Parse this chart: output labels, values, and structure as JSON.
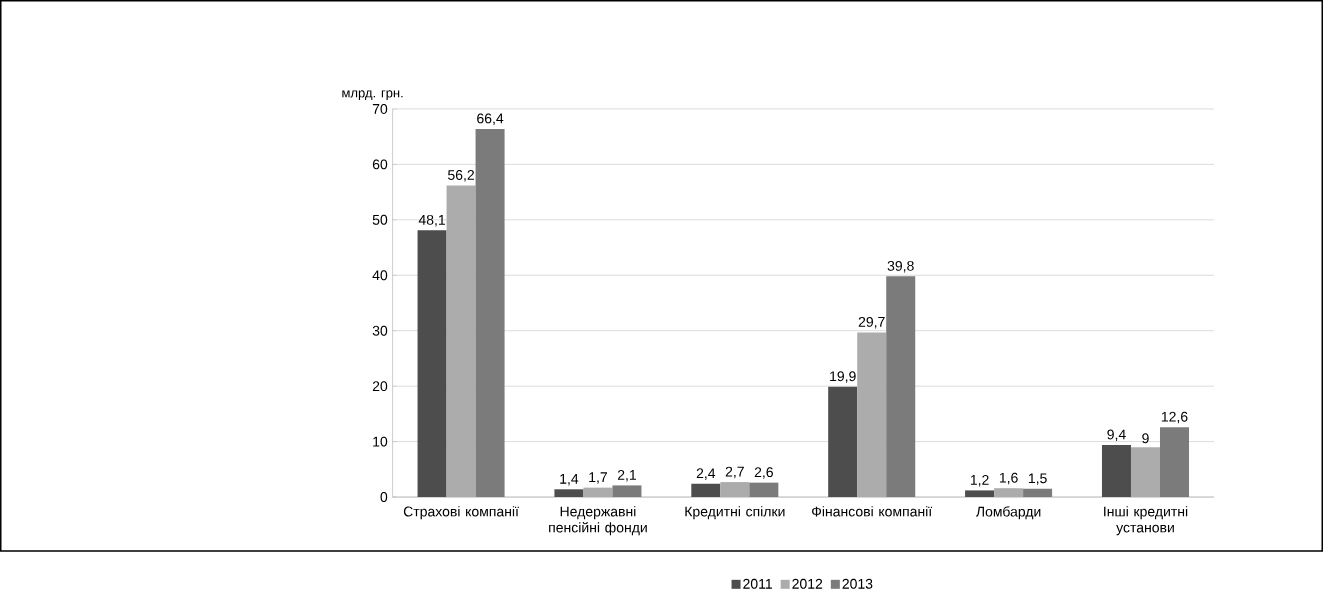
{
  "chart_data": {
    "type": "bar",
    "ylabel": "млрд. грн.",
    "categories": [
      "Страхові компанії",
      "Недержавні пенсійні фонди",
      "Кредитні спілки",
      "Фінансові компанії",
      "Ломбарди",
      "Інші кредитні установи"
    ],
    "series": [
      {
        "name": "2011",
        "color": "#4d4d4d",
        "values": [
          48.1,
          1.4,
          2.4,
          19.9,
          1.2,
          9.4
        ],
        "value_labels": [
          "48,1",
          "1,4",
          "2,4",
          "19,9",
          "1,2",
          "9,4"
        ]
      },
      {
        "name": "2012",
        "color": "#acacac",
        "values": [
          56.2,
          1.7,
          2.7,
          29.7,
          1.6,
          9
        ],
        "value_labels": [
          "56,2",
          "1,7",
          "2,7",
          "29,7",
          "1,6",
          "9"
        ]
      },
      {
        "name": "2013",
        "color": "#7b7b7b",
        "values": [
          66.4,
          2.1,
          2.6,
          39.8,
          1.5,
          12.6
        ],
        "value_labels": [
          "66,4",
          "2,1",
          "2,6",
          "39,8",
          "1,5",
          "12,6"
        ]
      }
    ],
    "ylim": [
      0,
      70
    ],
    "yticks": [
      0,
      10,
      20,
      30,
      40,
      50,
      60,
      70
    ],
    "grid": "y",
    "legend": "bottom"
  }
}
